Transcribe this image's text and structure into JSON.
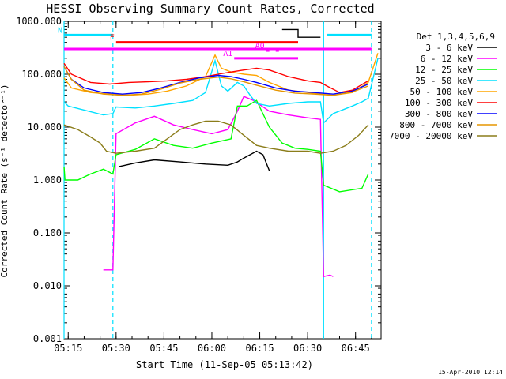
{
  "chart_data": {
    "type": "line",
    "title": "HESSI Observing Summary Count Rates, Corrected",
    "xlabel": "Start Time (11-Sep-05 05:13:42)",
    "ylabel": "Corrected Count Rate (s⁻¹ detector⁻¹)",
    "yscale": "log",
    "ylim": [
      0.001,
      1000
    ],
    "xlim": [
      "05:13:42",
      "06:53:00"
    ],
    "x_ticks": [
      "05:15",
      "05:30",
      "05:45",
      "06:00",
      "06:15",
      "06:30",
      "06:45"
    ],
    "y_ticks": [
      "1000.000",
      "100.000",
      "10.000",
      "1.000",
      "0.100",
      "0.010",
      "0.001"
    ],
    "legend": {
      "title": "Det 1,3,4,5,6,9",
      "placement": "right-outside"
    },
    "series": [
      {
        "name": "3 - 6 keV",
        "color": "#000000",
        "points": [
          [
            "05:31",
            1.8
          ],
          [
            "05:36",
            2.1
          ],
          [
            "05:42",
            2.4
          ],
          [
            "05:50",
            2.2
          ],
          [
            "05:58",
            2.0
          ],
          [
            "06:05",
            1.9
          ],
          [
            "06:08",
            2.2
          ],
          [
            "06:10",
            2.6
          ],
          [
            "06:14",
            3.5
          ],
          [
            "06:16",
            3.0
          ],
          [
            "06:18",
            1.5
          ]
        ]
      },
      {
        "name": "6 - 12 keV",
        "color": "#ff00ff",
        "points": [
          [
            "05:26",
            0.02
          ],
          [
            "05:29",
            0.02
          ],
          [
            "05:30",
            7.5
          ],
          [
            "05:36",
            12
          ],
          [
            "05:42",
            16
          ],
          [
            "05:48",
            11
          ],
          [
            "05:54",
            9
          ],
          [
            "06:00",
            7.5
          ],
          [
            "06:05",
            9
          ],
          [
            "06:08",
            20
          ],
          [
            "06:10",
            38
          ],
          [
            "06:13",
            32
          ],
          [
            "06:18",
            20
          ],
          [
            "06:24",
            17
          ],
          [
            "06:30",
            15
          ],
          [
            "06:34",
            14
          ],
          [
            "06:35",
            0.015
          ],
          [
            "06:37",
            0.016
          ],
          [
            "06:38",
            0.015
          ]
        ]
      },
      {
        "name": "12 - 25 keV",
        "color": "#00ff00",
        "points": [
          [
            "05:13:42",
            1.8
          ],
          [
            "05:14",
            1.0
          ],
          [
            "05:18",
            1.0
          ],
          [
            "05:22",
            1.3
          ],
          [
            "05:26",
            1.6
          ],
          [
            "05:29",
            1.3
          ],
          [
            "05:30",
            3
          ],
          [
            "05:36",
            3.8
          ],
          [
            "05:42",
            6
          ],
          [
            "05:48",
            4.5
          ],
          [
            "05:54",
            4
          ],
          [
            "06:00",
            5
          ],
          [
            "06:06",
            6
          ],
          [
            "06:08",
            25
          ],
          [
            "06:11",
            25
          ],
          [
            "06:14",
            32
          ],
          [
            "06:18",
            10
          ],
          [
            "06:22",
            5
          ],
          [
            "06:26",
            4
          ],
          [
            "06:30",
            3.8
          ],
          [
            "06:34",
            3.5
          ],
          [
            "06:35",
            0.8
          ],
          [
            "06:40",
            0.6
          ],
          [
            "06:47",
            0.7
          ],
          [
            "06:49",
            1.3
          ]
        ]
      },
      {
        "name": "25 - 50 keV",
        "color": "#00e0ff",
        "points": [
          [
            "05:13:42",
            30
          ],
          [
            "05:15",
            25
          ],
          [
            "05:20",
            21
          ],
          [
            "05:26",
            17
          ],
          [
            "05:29",
            18
          ],
          [
            "05:30",
            24
          ],
          [
            "05:36",
            23
          ],
          [
            "05:42",
            25
          ],
          [
            "05:48",
            28
          ],
          [
            "05:54",
            32
          ],
          [
            "05:58",
            45
          ],
          [
            "06:01",
            180
          ],
          [
            "06:03",
            60
          ],
          [
            "06:05",
            48
          ],
          [
            "06:08",
            70
          ],
          [
            "06:10",
            60
          ],
          [
            "06:12",
            40
          ],
          [
            "06:14",
            28
          ],
          [
            "06:18",
            25
          ],
          [
            "06:24",
            28
          ],
          [
            "06:30",
            30
          ],
          [
            "06:34",
            30
          ],
          [
            "06:35",
            12
          ],
          [
            "06:38",
            18
          ],
          [
            "06:44",
            25
          ],
          [
            "06:47",
            30
          ],
          [
            "06:49",
            35
          ],
          [
            "06:52",
            200
          ]
        ]
      },
      {
        "name": "50 - 100 keV",
        "color": "#ffa500",
        "points": [
          [
            "05:13:42",
            85
          ],
          [
            "05:16",
            55
          ],
          [
            "05:22",
            45
          ],
          [
            "05:28",
            42
          ],
          [
            "05:34",
            40
          ],
          [
            "05:40",
            42
          ],
          [
            "05:46",
            48
          ],
          [
            "05:52",
            60
          ],
          [
            "05:58",
            90
          ],
          [
            "06:01",
            230
          ],
          [
            "06:03",
            130
          ],
          [
            "06:06",
            110
          ],
          [
            "06:10",
            100
          ],
          [
            "06:14",
            95
          ],
          [
            "06:18",
            70
          ],
          [
            "06:24",
            50
          ],
          [
            "06:30",
            45
          ],
          [
            "06:34",
            42
          ],
          [
            "06:38",
            40
          ],
          [
            "06:44",
            45
          ],
          [
            "06:49",
            70
          ],
          [
            "06:52",
            250
          ]
        ]
      },
      {
        "name": "100 - 300 keV",
        "color": "#ff0000",
        "points": [
          [
            "05:13:42",
            160
          ],
          [
            "05:16",
            100
          ],
          [
            "05:22",
            70
          ],
          [
            "05:28",
            65
          ],
          [
            "05:34",
            70
          ],
          [
            "05:40",
            72
          ],
          [
            "05:46",
            75
          ],
          [
            "05:52",
            80
          ],
          [
            "05:58",
            90
          ],
          [
            "06:02",
            100
          ],
          [
            "06:06",
            110
          ],
          [
            "06:10",
            120
          ],
          [
            "06:14",
            130
          ],
          [
            "06:18",
            120
          ],
          [
            "06:24",
            90
          ],
          [
            "06:30",
            75
          ],
          [
            "06:34",
            70
          ],
          [
            "06:36",
            60
          ],
          [
            "06:40",
            45
          ],
          [
            "06:44",
            50
          ],
          [
            "06:49",
            75
          ]
        ]
      },
      {
        "name": "300 - 800 keV",
        "color": "#0000ff",
        "points": [
          [
            "05:13:42",
            140
          ],
          [
            "05:16",
            80
          ],
          [
            "05:20",
            55
          ],
          [
            "05:26",
            45
          ],
          [
            "05:32",
            42
          ],
          [
            "05:38",
            45
          ],
          [
            "05:44",
            55
          ],
          [
            "05:50",
            70
          ],
          [
            "05:56",
            85
          ],
          [
            "06:02",
            95
          ],
          [
            "06:06",
            90
          ],
          [
            "06:10",
            80
          ],
          [
            "06:14",
            70
          ],
          [
            "06:20",
            55
          ],
          [
            "06:26",
            48
          ],
          [
            "06:32",
            45
          ],
          [
            "06:38",
            42
          ],
          [
            "06:44",
            48
          ],
          [
            "06:49",
            65
          ]
        ]
      },
      {
        "name": "800 - 7000 keV",
        "color": "#e69500",
        "points": [
          [
            "05:13:42",
            140
          ],
          [
            "05:16",
            80
          ],
          [
            "05:20",
            50
          ],
          [
            "05:26",
            42
          ],
          [
            "05:32",
            40
          ],
          [
            "05:38",
            42
          ],
          [
            "05:44",
            52
          ],
          [
            "05:50",
            68
          ],
          [
            "05:56",
            80
          ],
          [
            "06:02",
            88
          ],
          [
            "06:06",
            82
          ],
          [
            "06:10",
            72
          ],
          [
            "06:14",
            62
          ],
          [
            "06:20",
            50
          ],
          [
            "06:26",
            44
          ],
          [
            "06:32",
            42
          ],
          [
            "06:38",
            40
          ],
          [
            "06:44",
            46
          ],
          [
            "06:49",
            60
          ]
        ]
      },
      {
        "name": "7000 - 20000 keV",
        "color": "#8b7d1a",
        "points": [
          [
            "05:13:42",
            11
          ],
          [
            "05:18",
            9
          ],
          [
            "05:22",
            6.5
          ],
          [
            "05:25",
            5
          ],
          [
            "05:27",
            3.5
          ],
          [
            "05:30",
            3.2
          ],
          [
            "05:36",
            3.5
          ],
          [
            "05:42",
            4
          ],
          [
            "05:46",
            6
          ],
          [
            "05:50",
            9
          ],
          [
            "05:54",
            11
          ],
          [
            "05:58",
            13
          ],
          [
            "06:02",
            13
          ],
          [
            "06:06",
            11
          ],
          [
            "06:10",
            7
          ],
          [
            "06:14",
            4.5
          ],
          [
            "06:18",
            4
          ],
          [
            "06:24",
            3.5
          ],
          [
            "06:30",
            3.5
          ],
          [
            "06:34",
            3.2
          ],
          [
            "06:38",
            3.5
          ],
          [
            "06:42",
            4.5
          ],
          [
            "06:46",
            7
          ],
          [
            "06:49",
            11
          ]
        ]
      }
    ],
    "flag_bars": [
      {
        "label": "N",
        "color": "#00e0ff",
        "y": 550,
        "spans": [
          [
            "05:13:42",
            "05:29"
          ],
          [
            "06:36",
            "06:50"
          ]
        ]
      },
      {
        "label": "F",
        "color": "#ff0000",
        "y": 400,
        "spans": [
          [
            "05:30",
            "06:27"
          ]
        ]
      },
      {
        "label": "",
        "color": "#ff00ff",
        "y": 300,
        "spans": [
          [
            "05:13:42",
            "06:50"
          ]
        ]
      },
      {
        "label": "A1",
        "color": "#ff00ff",
        "y": 200,
        "spans": [
          [
            "06:07",
            "06:27"
          ]
        ]
      },
      {
        "label": "A0",
        "color": "#ff00ff",
        "y": 280,
        "spans": [
          [
            "06:17",
            "06:18"
          ],
          [
            "06:20",
            "06:21"
          ]
        ]
      }
    ],
    "vertical_markers": [
      {
        "time": "05:13:42",
        "color": "#00e0ff",
        "style": "solid"
      },
      {
        "time": "05:29",
        "color": "#00e0ff",
        "style": "dashed"
      },
      {
        "time": "06:35",
        "color": "#00e0ff",
        "style": "solid"
      },
      {
        "time": "06:50",
        "color": "#00e0ff",
        "style": "dashed"
      }
    ],
    "attenuator_step": {
      "color": "#000000",
      "points": [
        [
          "06:22",
          700
        ],
        [
          "06:27",
          700
        ],
        [
          "06:27",
          500
        ],
        [
          "06:34",
          500
        ]
      ]
    }
  },
  "footer": {
    "date_stamp": "15-Apr-2010 12:14"
  }
}
